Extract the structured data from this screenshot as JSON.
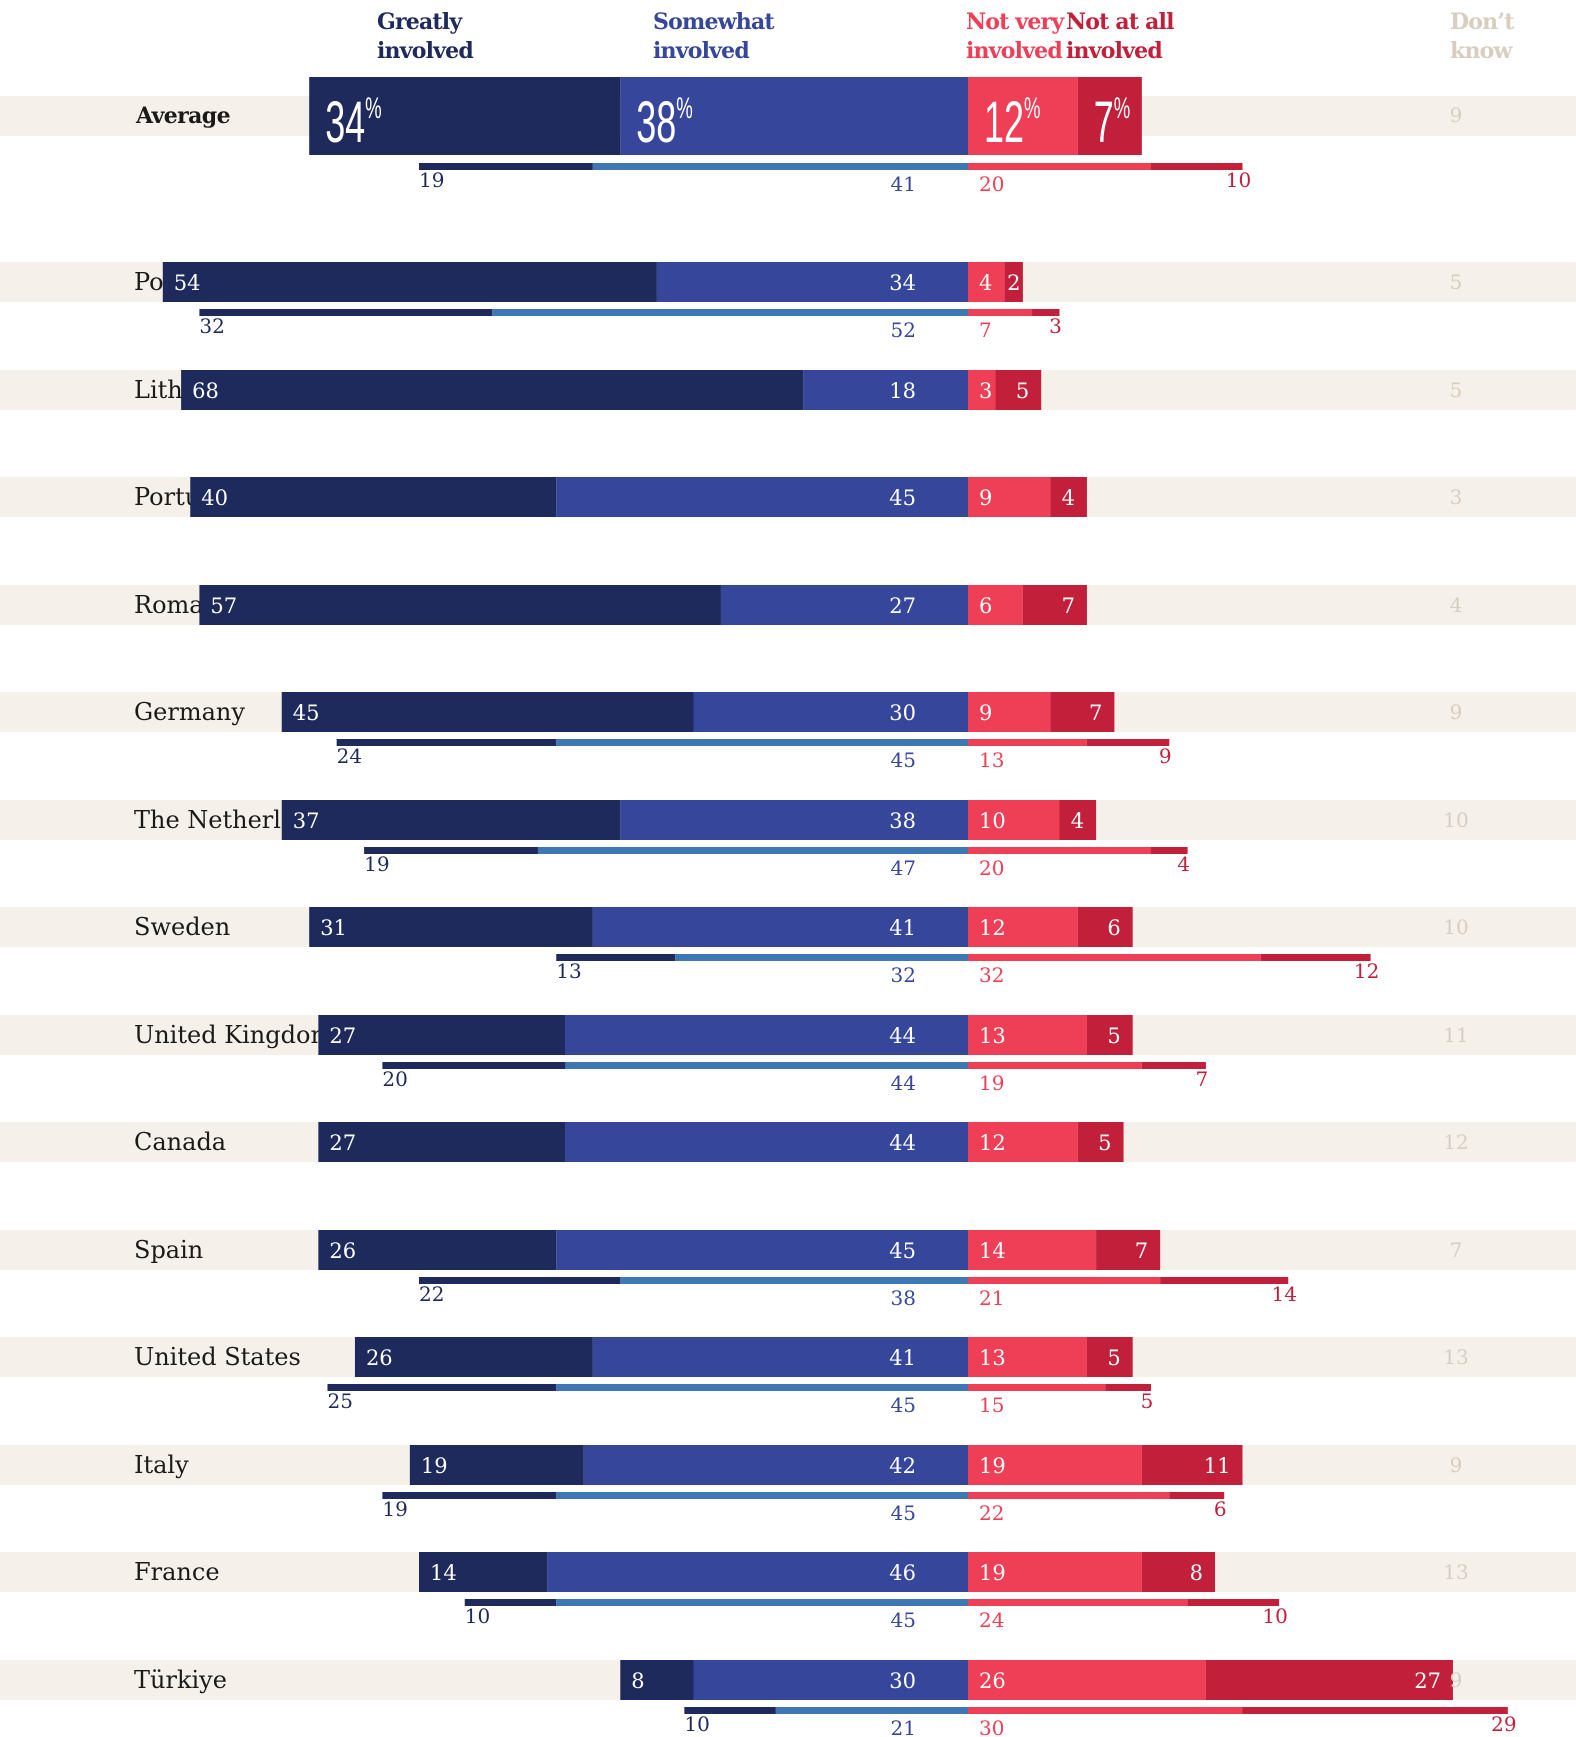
{
  "chart_data": {
    "type": "bar",
    "layout": "diverging-stacked",
    "legend": [
      {
        "key": "greatly",
        "line1": "Greatly",
        "line2": "involved",
        "color": "#1f2a5c"
      },
      {
        "key": "somewhat",
        "line1": "Somewhat",
        "line2": "involved",
        "color": "#36479b"
      },
      {
        "key": "notvery",
        "line1": "Not very",
        "line2": "involved",
        "color": "#ee3f57"
      },
      {
        "key": "notatall",
        "line1": "Not at all",
        "line2": "involved",
        "color": "#c21f3a"
      },
      {
        "key": "dontknow",
        "line1": "Don’t",
        "line2": "know",
        "color": "#d8cdbf"
      }
    ],
    "secondary_colors": {
      "greatly": "#1f2a5c",
      "somewhat": "#3f77b5",
      "notvery": "#ee3f57",
      "notatall": "#c21f3a"
    },
    "row_band_color": "#f5f0e9",
    "percent_sign": "%",
    "average": {
      "label": "Average",
      "values": [
        34,
        38,
        12,
        7
      ],
      "dontknow": 9,
      "secondary": [
        19,
        41,
        20,
        10
      ]
    },
    "countries": [
      {
        "label": "Poland",
        "values": [
          54,
          34,
          4,
          2
        ],
        "dontknow": 5,
        "secondary": [
          32,
          52,
          7,
          3
        ]
      },
      {
        "label": "Lithuania",
        "values": [
          68,
          18,
          3,
          5
        ],
        "dontknow": 5,
        "secondary": null
      },
      {
        "label": "Portugal",
        "values": [
          40,
          45,
          9,
          4
        ],
        "dontknow": 3,
        "secondary": null
      },
      {
        "label": "Romania",
        "values": [
          57,
          27,
          6,
          7
        ],
        "dontknow": 4,
        "secondary": null
      },
      {
        "label": "Germany",
        "values": [
          45,
          30,
          9,
          7
        ],
        "dontknow": 9,
        "secondary": [
          24,
          45,
          13,
          9
        ]
      },
      {
        "label": "The Netherlands",
        "values": [
          37,
          38,
          10,
          4
        ],
        "dontknow": 10,
        "secondary": [
          19,
          47,
          20,
          4
        ]
      },
      {
        "label": "Sweden",
        "values": [
          31,
          41,
          12,
          6
        ],
        "dontknow": 10,
        "secondary": [
          13,
          32,
          32,
          12
        ]
      },
      {
        "label": "United Kingdom",
        "values": [
          27,
          44,
          13,
          5
        ],
        "dontknow": 11,
        "secondary": [
          20,
          44,
          19,
          7
        ]
      },
      {
        "label": "Canada",
        "values": [
          27,
          44,
          12,
          5
        ],
        "dontknow": 12,
        "secondary": null
      },
      {
        "label": "Spain",
        "values": [
          26,
          45,
          14,
          7
        ],
        "dontknow": 7,
        "secondary": [
          22,
          38,
          21,
          14
        ]
      },
      {
        "label": "United States",
        "values": [
          26,
          41,
          13,
          5
        ],
        "dontknow": 13,
        "secondary": [
          25,
          45,
          15,
          5
        ]
      },
      {
        "label": "Italy",
        "values": [
          19,
          42,
          19,
          11
        ],
        "dontknow": 9,
        "secondary": [
          19,
          45,
          22,
          6
        ]
      },
      {
        "label": "France",
        "values": [
          14,
          46,
          19,
          8
        ],
        "dontknow": 13,
        "secondary": [
          10,
          45,
          24,
          10
        ]
      },
      {
        "label": "Türkiye",
        "values": [
          8,
          30,
          26,
          27
        ],
        "dontknow": 9,
        "secondary": [
          10,
          21,
          30,
          29
        ]
      }
    ]
  }
}
